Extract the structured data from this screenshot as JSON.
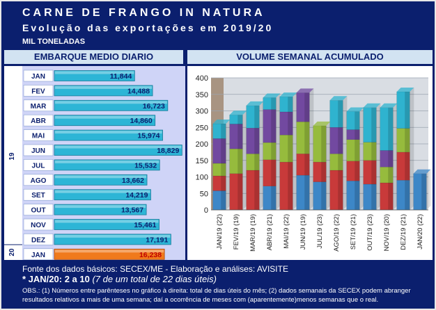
{
  "header": {
    "title": "CARNE DE FRANGO IN NATURA",
    "subtitle": "Evolução das exportações em 2019/20",
    "unit": "MIL TONELADAS"
  },
  "left_title": "EMBARQUE MEDIO DIARIO",
  "right_title": "VOLUME SEMANAL ACUMULADO",
  "colors": {
    "bar_cyan": "#2db5d6",
    "bar_orange": "#f07a1c",
    "week1": "#3d87c7",
    "week2": "#c83a3a",
    "week3": "#96bb3d",
    "week4": "#7249a0",
    "week5": "#2fb3cf"
  },
  "footer": {
    "source": "Fonte dos dados básicos: SECEX/ME - Elaboração e análises: AVISITE",
    "note_bold": "*  JAN/20: 2 a 10",
    "note_italic": "(7 de um total de 22 dias úteis)",
    "obs": "OBS.: (1) Números entre parênteses no gráfico à direita: total de dias úteis do mês; (2) dados semanais da SECEX podem abranger resultados relativos a mais de uma semana; daí a ocorrência de meses com (aparentemente)menos semanas que o real."
  },
  "chart_data": [
    {
      "type": "bar",
      "orientation": "horizontal",
      "title": "EMBARQUE MEDIO DIARIO",
      "year_labels": [
        "19",
        "20"
      ],
      "categories": [
        "JAN",
        "FEV",
        "MAR",
        "ABR",
        "MAI",
        "JUN",
        "JUL",
        "AGO",
        "SET",
        "OUT",
        "NOV",
        "DEZ",
        "JAN"
      ],
      "value_labels": [
        "11,844",
        "14,488",
        "16,723",
        "14,860",
        "15,974",
        "18,829",
        "15,532",
        "13,662",
        "14,219",
        "13,567",
        "15,461",
        "17,191",
        "16,238"
      ],
      "values": [
        11.844,
        14.488,
        16.723,
        14.86,
        15.974,
        18.829,
        15.532,
        13.662,
        14.219,
        13.567,
        15.461,
        17.191,
        16.238
      ],
      "xlim": [
        0,
        19
      ]
    },
    {
      "type": "bar",
      "stacked": true,
      "title": "VOLUME SEMANAL ACUMULADO",
      "categories": [
        "JAN/19 (22)",
        "FEV/19 (19)",
        "MAR/19 (19)",
        "ABR/19 (21)",
        "MAI/19 (22)",
        "JUN/19 (19)",
        "JUL/19 (23)",
        "AGO/19 (22)",
        "SET/19 (21)",
        "OUT/19 (23)",
        "NOV/19 (20)",
        "DEZ/19 (21)",
        "JAN/20 (22)"
      ],
      "ylim": [
        0,
        400
      ],
      "yticks": [
        0,
        50,
        100,
        150,
        200,
        250,
        300,
        350,
        400
      ],
      "series": [
        {
          "values": [
            58,
            0,
            0,
            72,
            0,
            105,
            85,
            0,
            88,
            78,
            0,
            90,
            110
          ]
        },
        {
          "values": [
            45,
            110,
            120,
            80,
            145,
            65,
            60,
            120,
            60,
            72,
            82,
            85,
            0
          ]
        },
        {
          "values": [
            38,
            75,
            50,
            52,
            82,
            97,
            110,
            50,
            65,
            55,
            48,
            72,
            0
          ]
        },
        {
          "values": [
            75,
            75,
            78,
            100,
            70,
            88,
            0,
            80,
            30,
            0,
            50,
            0,
            0
          ]
        },
        {
          "values": [
            45,
            28,
            68,
            36,
            46,
            0,
            0,
            82,
            55,
            105,
            130,
            111,
            0
          ]
        }
      ]
    }
  ]
}
